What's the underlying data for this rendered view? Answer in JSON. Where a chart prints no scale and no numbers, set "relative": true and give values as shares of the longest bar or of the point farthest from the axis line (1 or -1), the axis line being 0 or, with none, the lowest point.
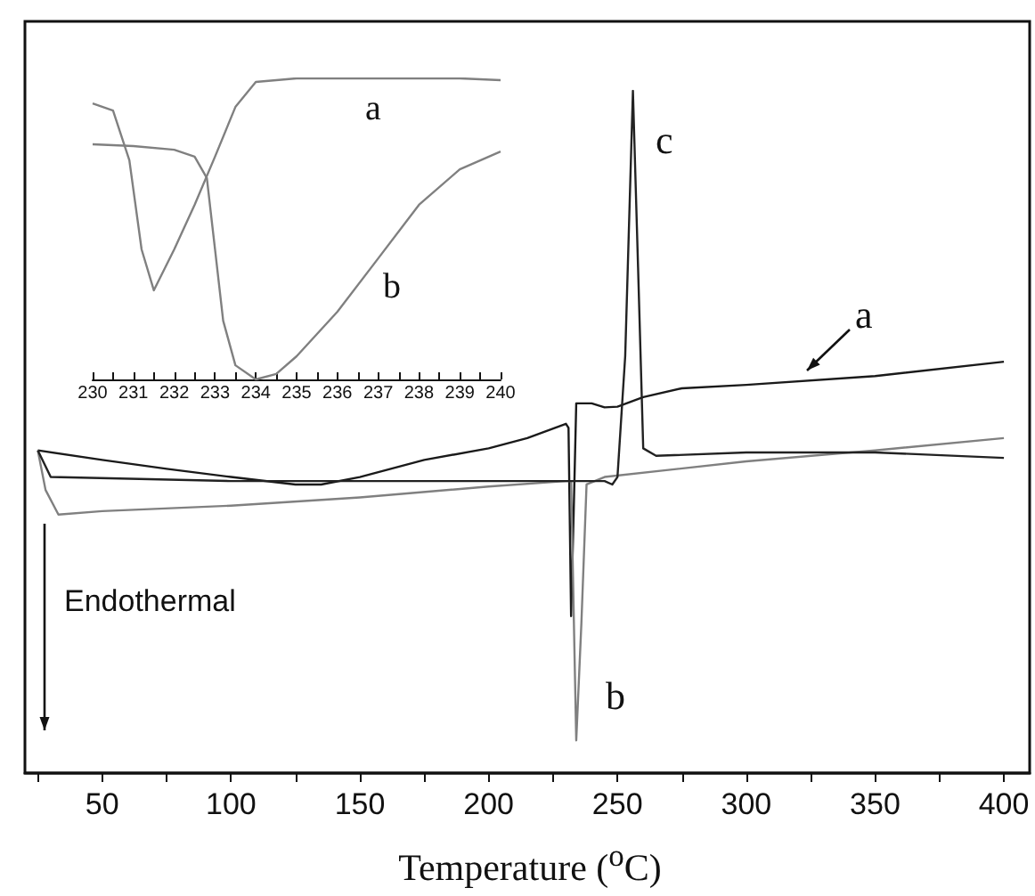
{
  "chart_data": [
    {
      "type": "line",
      "relative": true,
      "xlabel": "Temperature ($^{o}$C)",
      "xlim": [
        20,
        410
      ],
      "xticks": [
        50,
        100,
        150,
        200,
        250,
        300,
        350,
        400
      ],
      "annotations": [
        "Endothermal"
      ],
      "series": [
        {
          "name": "a",
          "color": "#1a1a1a",
          "x": [
            25,
            50,
            75,
            100,
            125,
            135,
            150,
            175,
            200,
            215,
            230,
            231,
            232,
            233,
            234,
            240,
            245,
            250,
            260,
            275,
            300,
            350,
            400
          ],
          "values": [
            0.473,
            0.459,
            0.446,
            0.434,
            0.423,
            0.423,
            0.434,
            0.459,
            0.476,
            0.491,
            0.512,
            0.506,
            0.23,
            0.381,
            0.542,
            0.542,
            0.536,
            0.537,
            0.551,
            0.564,
            0.569,
            0.582,
            0.603
          ]
        },
        {
          "name": "b",
          "color": "#808080",
          "x": [
            25,
            28,
            33,
            50,
            100,
            150,
            200,
            230,
            232,
            234,
            236,
            238,
            245,
            300,
            350,
            400
          ],
          "values": [
            0.473,
            0.415,
            0.379,
            0.384,
            0.392,
            0.404,
            0.42,
            0.428,
            0.428,
            0.048,
            0.22,
            0.423,
            0.434,
            0.457,
            0.473,
            0.491
          ]
        },
        {
          "name": "c",
          "color": "#222222",
          "x": [
            25,
            30,
            100,
            200,
            245,
            248,
            250,
            253,
            256,
            258,
            260,
            265,
            300,
            350,
            400
          ],
          "values": [
            0.473,
            0.434,
            0.428,
            0.428,
            0.428,
            0.423,
            0.434,
            0.611,
            1,
            0.741,
            0.476,
            0.465,
            0.47,
            0.47,
            0.462
          ]
        }
      ]
    },
    {
      "type": "line",
      "relative": true,
      "xlim": [
        230,
        240
      ],
      "xticks": [
        230,
        231,
        232,
        233,
        234,
        235,
        236,
        237,
        238,
        239,
        240
      ],
      "series": [
        {
          "name": "a",
          "color": "#808080",
          "x": [
            230,
            230.5,
            230.9,
            231.2,
            231.5,
            232,
            232.5,
            233,
            233.5,
            234,
            235,
            236,
            237,
            238,
            239,
            240
          ],
          "values": [
            0.917,
            0.893,
            0.728,
            0.432,
            0.296,
            0.432,
            0.58,
            0.74,
            0.905,
            0.988,
            1,
            1,
            1,
            1,
            1,
            0.994
          ]
        },
        {
          "name": "b",
          "color": "#808080",
          "x": [
            230,
            231,
            232,
            232.5,
            232.8,
            233,
            233.2,
            233.5,
            234,
            234.5,
            235,
            236,
            237,
            238,
            239,
            240
          ],
          "values": [
            0.781,
            0.775,
            0.763,
            0.74,
            0.669,
            0.432,
            0.195,
            0.047,
            0,
            0.018,
            0.077,
            0.225,
            0.402,
            0.58,
            0.698,
            0.757
          ]
        }
      ]
    }
  ]
}
